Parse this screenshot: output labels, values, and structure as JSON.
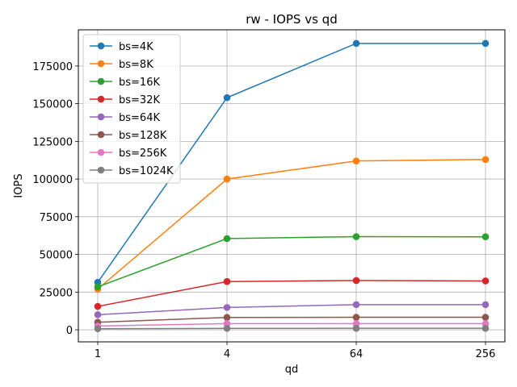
{
  "chart_data": {
    "type": "line",
    "title": "rw - IOPS vs qd",
    "xlabel": "qd",
    "ylabel": "IOPS",
    "categories": [
      "1",
      "4",
      "64",
      "256"
    ],
    "ylim": [
      -8000,
      199000
    ],
    "yticks": [
      0,
      25000,
      50000,
      75000,
      100000,
      125000,
      150000,
      175000
    ],
    "grid": true,
    "legend_position": "top-left",
    "series": [
      {
        "name": "bs=4K",
        "color": "#1f77b4",
        "values": [
          31500,
          154000,
          190000,
          190000
        ]
      },
      {
        "name": "bs=8K",
        "color": "#ff7f0e",
        "values": [
          27000,
          100000,
          112000,
          113000
        ]
      },
      {
        "name": "bs=16K",
        "color": "#2ca02c",
        "values": [
          28500,
          60500,
          61800,
          61700
        ]
      },
      {
        "name": "bs=32K",
        "color": "#d62728",
        "values": [
          15500,
          32000,
          32700,
          32400
        ]
      },
      {
        "name": "bs=64K",
        "color": "#9467bd",
        "values": [
          10000,
          14800,
          16700,
          16700
        ]
      },
      {
        "name": "bs=128K",
        "color": "#8c564b",
        "values": [
          5000,
          8200,
          8300,
          8300
        ]
      },
      {
        "name": "bs=256K",
        "color": "#e377c2",
        "values": [
          2500,
          4100,
          4100,
          4100
        ]
      },
      {
        "name": "bs=1024K",
        "color": "#7f7f7f",
        "values": [
          700,
          950,
          1000,
          1000
        ]
      }
    ]
  }
}
